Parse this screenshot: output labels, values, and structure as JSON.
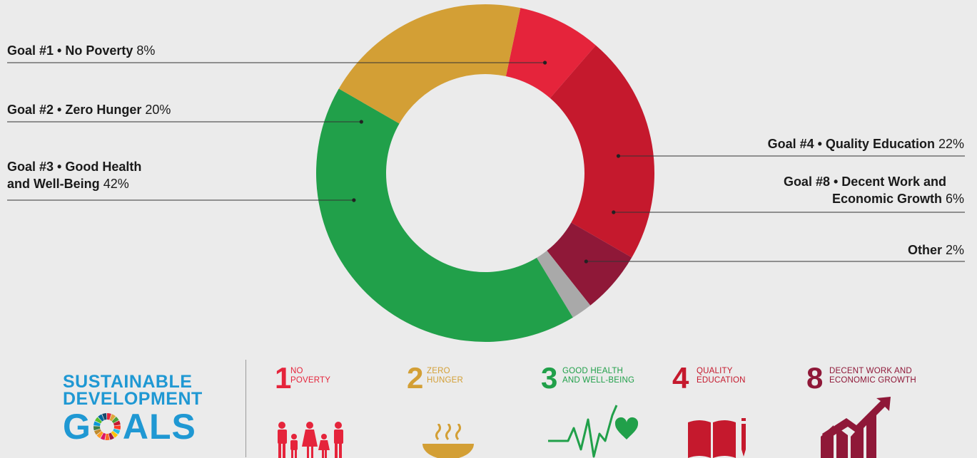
{
  "chart_data": {
    "type": "pie",
    "style": "donut",
    "slices": [
      {
        "label": "Goal #1 • No Poverty",
        "value": 8,
        "value_text": "8%",
        "color": "#e5243b"
      },
      {
        "label": "Goal #4 • Quality Education",
        "value": 22,
        "value_text": "22%",
        "color": "#c5192d"
      },
      {
        "label": "Goal #8 • Decent Work and Economic Growth",
        "value": 6,
        "value_text": "6%",
        "color": "#8f1838"
      },
      {
        "label": "Other",
        "value": 2,
        "value_text": "2%",
        "color": "#a9a9a9"
      },
      {
        "label": "Goal #3 • Good Health and Well-Being",
        "value": 42,
        "value_text": "42%",
        "color": "#21a04a"
      },
      {
        "label": "Goal #2 • Zero Hunger",
        "value": 20,
        "value_text": "20%",
        "color": "#d39f35"
      }
    ]
  },
  "labels": {
    "g1": {
      "name": "Goal #1 • No Poverty",
      "pct": "8%"
    },
    "g2": {
      "name": "Goal #2 • Zero Hunger",
      "pct": "20%"
    },
    "g3": {
      "name_line1": "Goal #3 • Good Health",
      "name_line2": "and Well-Being",
      "pct": "42%"
    },
    "g4": {
      "name": "Goal #4 • Quality Education",
      "pct": "22%"
    },
    "g8": {
      "name_line1": "Goal #8 • Decent Work and",
      "name_line2": "Economic Growth",
      "pct": "6%"
    },
    "other": {
      "name": "Other",
      "pct": "2%"
    }
  },
  "logo": {
    "line1": "SUSTAINABLE",
    "line2": "DEVELOPMENT",
    "goals_left": "G",
    "goals_right": "ALS",
    "color": "#1f98d3"
  },
  "goals": [
    {
      "number": "1",
      "title": "NO\nPOVERTY",
      "color": "#e5243b",
      "icon": "family-icon"
    },
    {
      "number": "2",
      "title": "ZERO\nHUNGER",
      "color": "#d39f35",
      "icon": "bowl-icon"
    },
    {
      "number": "3",
      "title": "GOOD HEALTH\nAND WELL-BEING",
      "color": "#21a04a",
      "icon": "heartbeat-icon"
    },
    {
      "number": "4",
      "title": "QUALITY\nEDUCATION",
      "color": "#c5192d",
      "icon": "book-pencil-icon"
    },
    {
      "number": "8",
      "title": "DECENT WORK AND\nECONOMIC GROWTH",
      "color": "#8f1838",
      "icon": "growth-chart-icon"
    }
  ]
}
